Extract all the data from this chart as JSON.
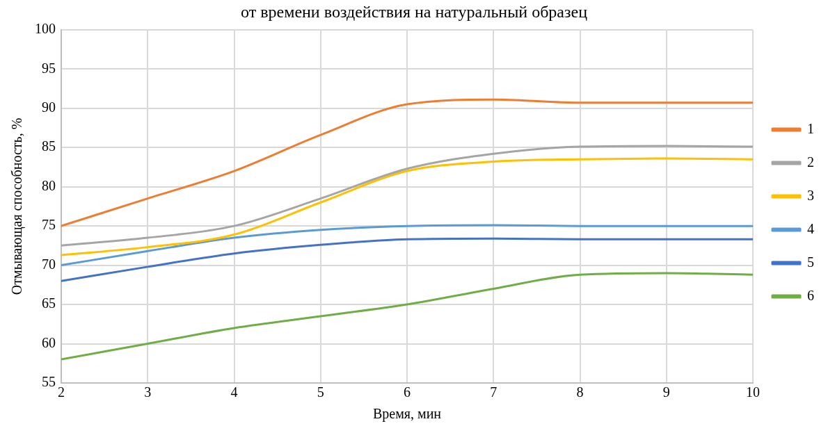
{
  "chart_data": {
    "type": "line",
    "title": "от времени воздействия на натуральный образец",
    "xlabel": "Время, мин",
    "ylabel": "Отмывающая способность, %",
    "x": [
      2,
      3,
      4,
      5,
      6,
      7,
      8,
      9,
      10
    ],
    "series": [
      {
        "name": "1",
        "color": "#ed7d31",
        "values": [
          75,
          78.5,
          82,
          86.6,
          90.5,
          91.1,
          90.7,
          90.7,
          90.7
        ]
      },
      {
        "name": "2",
        "color": "#a5a5a5",
        "values": [
          72.5,
          73.5,
          75,
          78.5,
          82.3,
          84.2,
          85.1,
          85.2,
          85.1
        ]
      },
      {
        "name": "3",
        "color": "#ffc000",
        "values": [
          71.3,
          72.3,
          73.9,
          78,
          82,
          83.2,
          83.5,
          83.6,
          83.5
        ]
      },
      {
        "name": "4",
        "color": "#5b9bd5",
        "values": [
          70,
          71.8,
          73.5,
          74.5,
          75,
          75.1,
          75,
          75,
          75
        ]
      },
      {
        "name": "5",
        "color": "#4472c4",
        "values": [
          68,
          69.8,
          71.5,
          72.6,
          73.3,
          73.4,
          73.3,
          73.3,
          73.3
        ]
      },
      {
        "name": "6",
        "color": "#70ad47",
        "values": [
          58,
          60,
          62,
          63.5,
          65,
          67,
          68.8,
          69,
          68.8
        ]
      }
    ],
    "xlim": [
      2,
      10
    ],
    "xticks": [
      2,
      3,
      4,
      5,
      6,
      7,
      8,
      9,
      10
    ],
    "ylim": [
      55,
      100
    ],
    "yticks": [
      55,
      60,
      65,
      70,
      75,
      80,
      85,
      90,
      95,
      100
    ],
    "grid": true,
    "legend": "right",
    "marker": "none",
    "line_style": "solid"
  }
}
